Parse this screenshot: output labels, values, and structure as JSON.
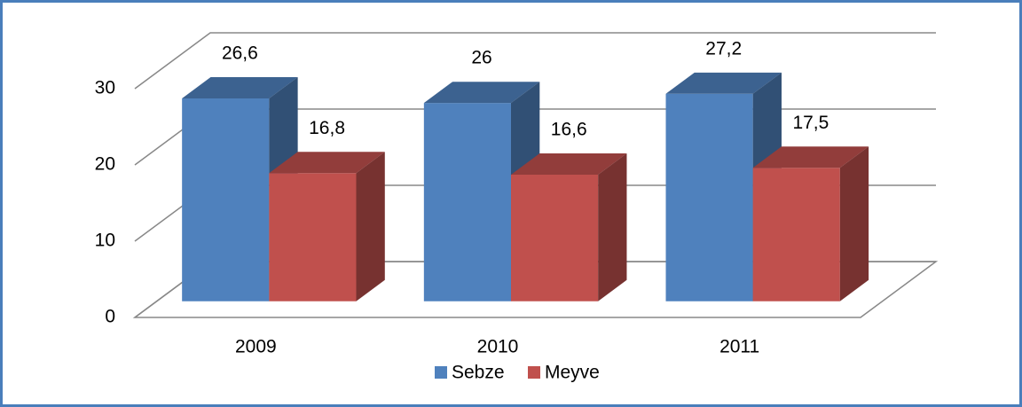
{
  "chart_data": {
    "type": "bar3d",
    "categories": [
      "2009",
      "2010",
      "2011"
    ],
    "series": [
      {
        "name": "Sebze",
        "color": "#4f81bd",
        "values": [
          26.6,
          26,
          27.2
        ],
        "value_labels": [
          "26,6",
          "26",
          "27,2"
        ]
      },
      {
        "name": "Meyve",
        "color": "#c0504d",
        "values": [
          16.8,
          16.6,
          17.5
        ],
        "value_labels": [
          "16,8",
          "16,6",
          "17,5"
        ]
      }
    ],
    "ylim": [
      0,
      30
    ],
    "yticks": [
      0,
      10,
      20,
      30
    ],
    "grid": true,
    "legend": "bottom"
  }
}
